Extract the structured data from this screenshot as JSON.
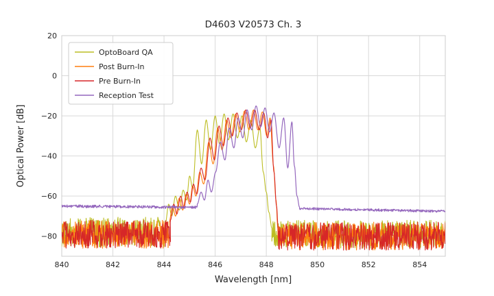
{
  "chart_data": {
    "type": "line",
    "title": "D4603 V20573 Ch. 3",
    "xlabel": "Wavelength [nm]",
    "ylabel": "Optical Power [dB]",
    "xlim": [
      840,
      855
    ],
    "ylim": [
      -90,
      20
    ],
    "xticks": [
      840,
      842,
      844,
      846,
      848,
      850,
      852,
      854
    ],
    "yticks": [
      20,
      0,
      -20,
      -40,
      -60,
      -80
    ],
    "grid": true,
    "grid_color": "#d9d9d9",
    "axes_edge_color": "#cccccc",
    "background_color": "#ffffff",
    "legend_position": "upper-left",
    "series": [
      {
        "name": "OptoBoard QA",
        "color": "#bcbd22",
        "linewidth": 1.1,
        "segments": [
          {
            "type": "noise",
            "x0": 840.0,
            "x1": 844.05,
            "level": -78,
            "level_end": -78,
            "jitter": 7.5
          },
          {
            "type": "curve",
            "points": [
              [
                844.05,
                -74
              ],
              [
                844.18,
                -64
              ],
              [
                844.3,
                -70
              ],
              [
                844.45,
                -60
              ],
              [
                844.6,
                -67
              ],
              [
                844.75,
                -57
              ],
              [
                844.88,
                -62
              ],
              [
                845.0,
                -50
              ],
              [
                845.12,
                -56
              ],
              [
                845.3,
                -27
              ],
              [
                845.47,
                -44
              ],
              [
                845.65,
                -22
              ],
              [
                845.82,
                -37
              ],
              [
                846.0,
                -20
              ],
              [
                846.17,
                -34
              ],
              [
                846.35,
                -19
              ],
              [
                846.52,
                -32
              ],
              [
                846.7,
                -19
              ],
              [
                846.87,
                -31
              ],
              [
                847.05,
                -20
              ],
              [
                847.22,
                -33
              ],
              [
                847.4,
                -22
              ],
              [
                847.57,
                -36
              ],
              [
                847.75,
                -26
              ],
              [
                847.88,
                -48
              ],
              [
                848.0,
                -58
              ],
              [
                848.1,
                -68
              ],
              [
                848.22,
                -76
              ]
            ]
          },
          {
            "type": "noise",
            "x0": 848.22,
            "x1": 855.0,
            "level": -79,
            "level_end": -79,
            "jitter": 7
          }
        ]
      },
      {
        "name": "Post Burn-In",
        "color": "#ff7f0e",
        "linewidth": 1.1,
        "segments": [
          {
            "type": "noise",
            "x0": 840.0,
            "x1": 844.2,
            "level": -79,
            "level_end": -79,
            "jitter": 7
          },
          {
            "type": "curve",
            "points": [
              [
                844.2,
                -73
              ],
              [
                844.33,
                -65
              ],
              [
                844.45,
                -70
              ],
              [
                844.6,
                -61
              ],
              [
                844.73,
                -67
              ],
              [
                844.87,
                -59
              ],
              [
                845.0,
                -64
              ],
              [
                845.12,
                -55
              ],
              [
                845.25,
                -60
              ],
              [
                845.4,
                -48
              ],
              [
                845.55,
                -54
              ],
              [
                845.75,
                -33
              ],
              [
                845.92,
                -44
              ],
              [
                846.1,
                -26
              ],
              [
                846.27,
                -37
              ],
              [
                846.45,
                -22
              ],
              [
                846.62,
                -31
              ],
              [
                846.8,
                -19
              ],
              [
                846.97,
                -28
              ],
              [
                847.15,
                -17.5
              ],
              [
                847.32,
                -27
              ],
              [
                847.5,
                -17
              ],
              [
                847.67,
                -27
              ],
              [
                847.85,
                -18
              ],
              [
                848.02,
                -30
              ],
              [
                848.15,
                -21
              ],
              [
                848.28,
                -45
              ],
              [
                848.38,
                -62
              ],
              [
                848.45,
                -76
              ]
            ]
          },
          {
            "type": "noise",
            "x0": 848.45,
            "x1": 855.0,
            "level": -80,
            "level_end": -80,
            "jitter": 7
          }
        ]
      },
      {
        "name": "Pre Burn-In",
        "color": "#d62728",
        "linewidth": 1.1,
        "segments": [
          {
            "type": "noise",
            "x0": 840.0,
            "x1": 844.25,
            "level": -79,
            "level_end": -79,
            "jitter": 7
          },
          {
            "type": "curve",
            "points": [
              [
                844.25,
                -72
              ],
              [
                844.38,
                -64
              ],
              [
                844.5,
                -69
              ],
              [
                844.65,
                -60
              ],
              [
                844.78,
                -66
              ],
              [
                844.9,
                -58
              ],
              [
                845.03,
                -63
              ],
              [
                845.15,
                -54
              ],
              [
                845.28,
                -59
              ],
              [
                845.45,
                -46
              ],
              [
                845.6,
                -52
              ],
              [
                845.8,
                -31
              ],
              [
                845.97,
                -42
              ],
              [
                846.15,
                -25
              ],
              [
                846.32,
                -35
              ],
              [
                846.5,
                -21
              ],
              [
                846.67,
                -30
              ],
              [
                846.85,
                -18.5
              ],
              [
                847.02,
                -27
              ],
              [
                847.2,
                -17
              ],
              [
                847.37,
                -26
              ],
              [
                847.55,
                -17
              ],
              [
                847.72,
                -27
              ],
              [
                847.9,
                -18.5
              ],
              [
                848.05,
                -31
              ],
              [
                848.18,
                -22
              ],
              [
                848.3,
                -48
              ],
              [
                848.4,
                -65
              ],
              [
                848.47,
                -77
              ]
            ]
          },
          {
            "type": "noise",
            "x0": 848.47,
            "x1": 855.0,
            "level": -80,
            "level_end": -80,
            "jitter": 7
          }
        ]
      },
      {
        "name": "Reception Test",
        "color": "#9467bd",
        "linewidth": 1.2,
        "segments": [
          {
            "type": "noise",
            "x0": 840.0,
            "x1": 845.3,
            "level": -65,
            "level_end": -65.6,
            "jitter": 0.7
          },
          {
            "type": "curve",
            "points": [
              [
                845.3,
                -64
              ],
              [
                845.45,
                -58
              ],
              [
                845.58,
                -62
              ],
              [
                845.72,
                -52
              ],
              [
                845.85,
                -58
              ],
              [
                846.02,
                -48
              ],
              [
                846.2,
                -33
              ],
              [
                846.38,
                -42
              ],
              [
                846.55,
                -26
              ],
              [
                846.73,
                -36
              ],
              [
                846.9,
                -21
              ],
              [
                847.08,
                -31
              ],
              [
                847.25,
                -17
              ],
              [
                847.43,
                -27
              ],
              [
                847.6,
                -15
              ],
              [
                847.78,
                -25.5
              ],
              [
                847.95,
                -16
              ],
              [
                848.13,
                -28
              ],
              [
                848.3,
                -18.5
              ],
              [
                848.5,
                -36
              ],
              [
                848.68,
                -21
              ],
              [
                848.84,
                -46
              ],
              [
                849.0,
                -23
              ],
              [
                849.1,
                -45
              ],
              [
                849.2,
                -60
              ],
              [
                849.3,
                -65.5
              ]
            ]
          },
          {
            "type": "noise",
            "x0": 849.3,
            "x1": 855.0,
            "level": -66.2,
            "level_end": -67.6,
            "jitter": 0.6
          }
        ]
      }
    ]
  },
  "legend": {
    "labels": [
      "OptoBoard QA",
      "Post Burn-In",
      "Pre Burn-In",
      "Reception Test"
    ]
  }
}
